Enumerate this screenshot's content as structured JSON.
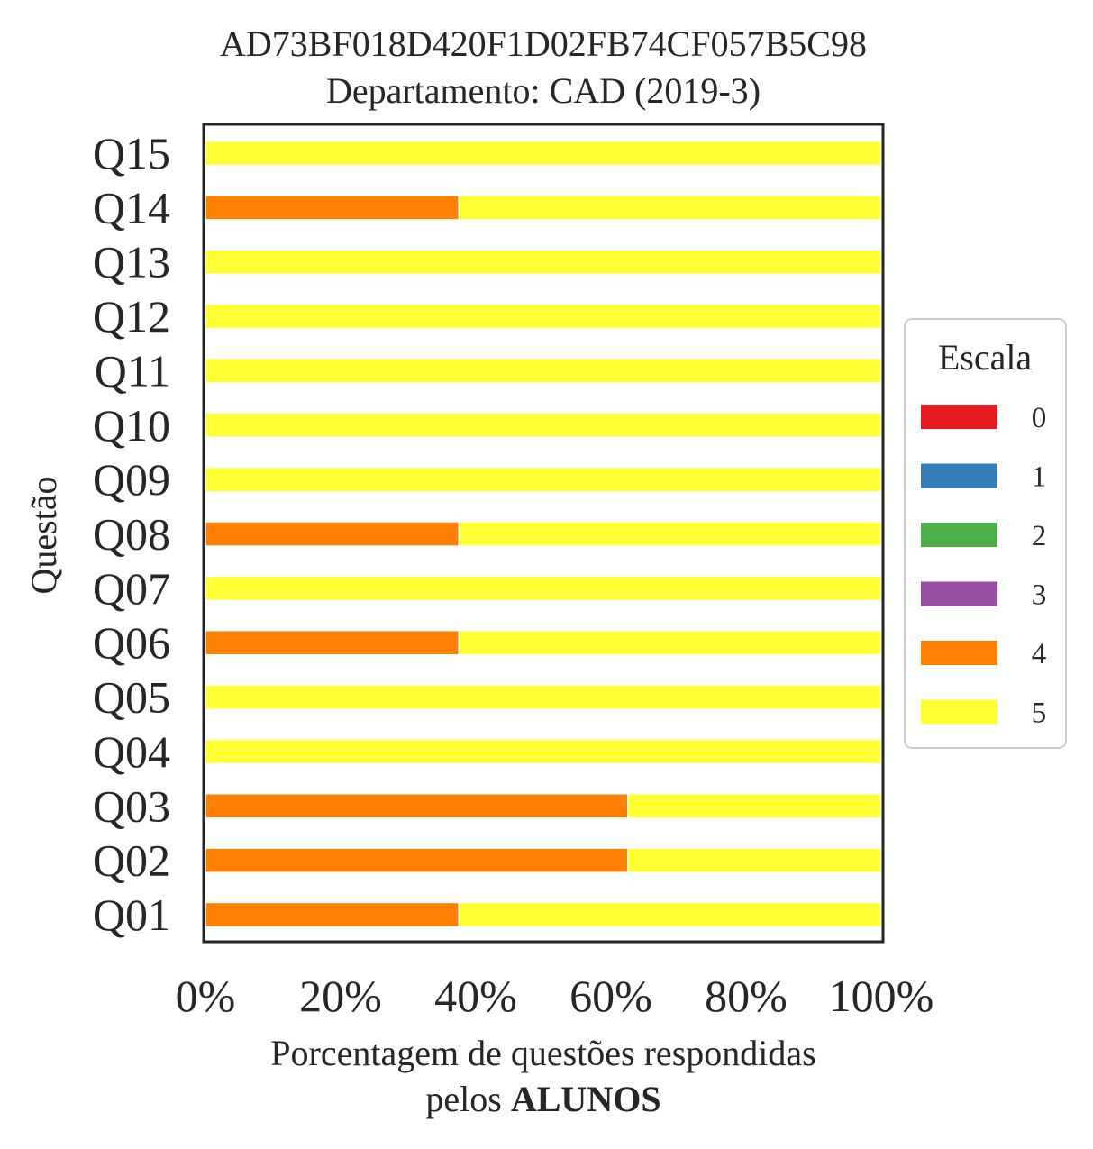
{
  "chart_data": {
    "type": "bar",
    "orientation": "horizontal",
    "stacked": true,
    "title": "AD73BF018D420F1D02FB74CF057B5C98",
    "subtitle": "Departamento: CAD (2019-3)",
    "xlabel_line1": "Porcentagem de questões respondidas",
    "xlabel_line2_prefix": "pelos ",
    "xlabel_line2_bold": "ALUNOS",
    "ylabel": "Questão",
    "categories": [
      "Q01",
      "Q02",
      "Q03",
      "Q04",
      "Q05",
      "Q06",
      "Q07",
      "Q08",
      "Q09",
      "Q10",
      "Q11",
      "Q12",
      "Q13",
      "Q14",
      "Q15"
    ],
    "xlim": [
      0,
      100
    ],
    "xticks": [
      "0%",
      "20%",
      "40%",
      "60%",
      "80%",
      "100%"
    ],
    "grid": false,
    "legend": {
      "title": "Escala",
      "placement": "center-right"
    },
    "series": [
      {
        "name": "0",
        "color": "#e41a1c",
        "values": [
          0,
          0,
          0,
          0,
          0,
          0,
          0,
          0,
          0,
          0,
          0,
          0,
          0,
          0,
          0
        ]
      },
      {
        "name": "1",
        "color": "#377eb8",
        "values": [
          0,
          0,
          0,
          0,
          0,
          0,
          0,
          0,
          0,
          0,
          0,
          0,
          0,
          0,
          0
        ]
      },
      {
        "name": "2",
        "color": "#4daf4a",
        "values": [
          0,
          0,
          0,
          0,
          0,
          0,
          0,
          0,
          0,
          0,
          0,
          0,
          0,
          0,
          0
        ]
      },
      {
        "name": "3",
        "color": "#984ea3",
        "values": [
          0,
          0,
          0,
          0,
          0,
          0,
          0,
          0,
          0,
          0,
          0,
          0,
          0,
          0,
          0
        ]
      },
      {
        "name": "4",
        "color": "#ff7f00",
        "values": [
          37.5,
          62.5,
          62.5,
          0,
          0,
          37.5,
          0,
          37.5,
          0,
          0,
          0,
          0,
          0,
          37.5,
          0
        ]
      },
      {
        "name": "5",
        "color": "#ffff33",
        "values": [
          62.5,
          37.5,
          37.5,
          100,
          100,
          62.5,
          100,
          62.5,
          100,
          100,
          100,
          100,
          100,
          62.5,
          100
        ]
      }
    ]
  }
}
